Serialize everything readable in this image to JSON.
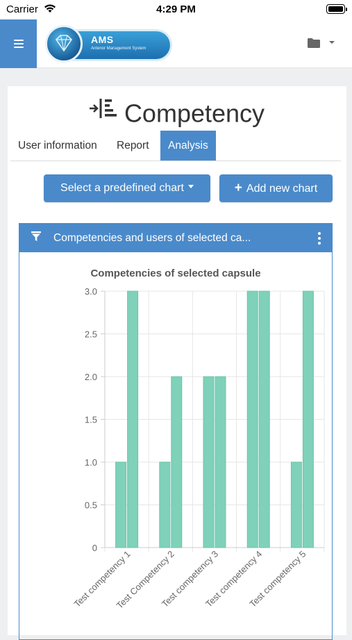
{
  "status_bar": {
    "carrier": "Carrier",
    "time": "4:29 PM"
  },
  "header": {
    "logo_title": "AMS",
    "logo_subtitle": "Antenor Management System"
  },
  "page": {
    "title": "Competency",
    "tabs": [
      {
        "label": "User information",
        "active": false
      },
      {
        "label": "Report",
        "active": false
      },
      {
        "label": "Analysis",
        "active": true
      }
    ],
    "predefined_button": "Select a predefined chart",
    "add_button": "Add new chart"
  },
  "panel": {
    "title": "Competencies and users of selected ca..."
  },
  "colors": {
    "accent": "#4a8acb",
    "bar": "#7fd1b9",
    "bar_stroke": "#6cc5aa"
  },
  "chart_data": {
    "type": "bar",
    "title": "Competencies of selected capsule",
    "categories": [
      "Test competency 1",
      "Test Competency 2",
      "Test competency 3",
      "Test competency 4",
      "Test competency 5"
    ],
    "series": [
      {
        "values": [
          1,
          1,
          2,
          3,
          1
        ]
      },
      {
        "values": [
          3,
          2,
          2,
          3,
          3
        ]
      }
    ],
    "yticks": [
      "0",
      "0.5",
      "1.0",
      "1.5",
      "2.0",
      "2.5",
      "3.0"
    ],
    "ylim": [
      0,
      3
    ],
    "grid": true
  }
}
